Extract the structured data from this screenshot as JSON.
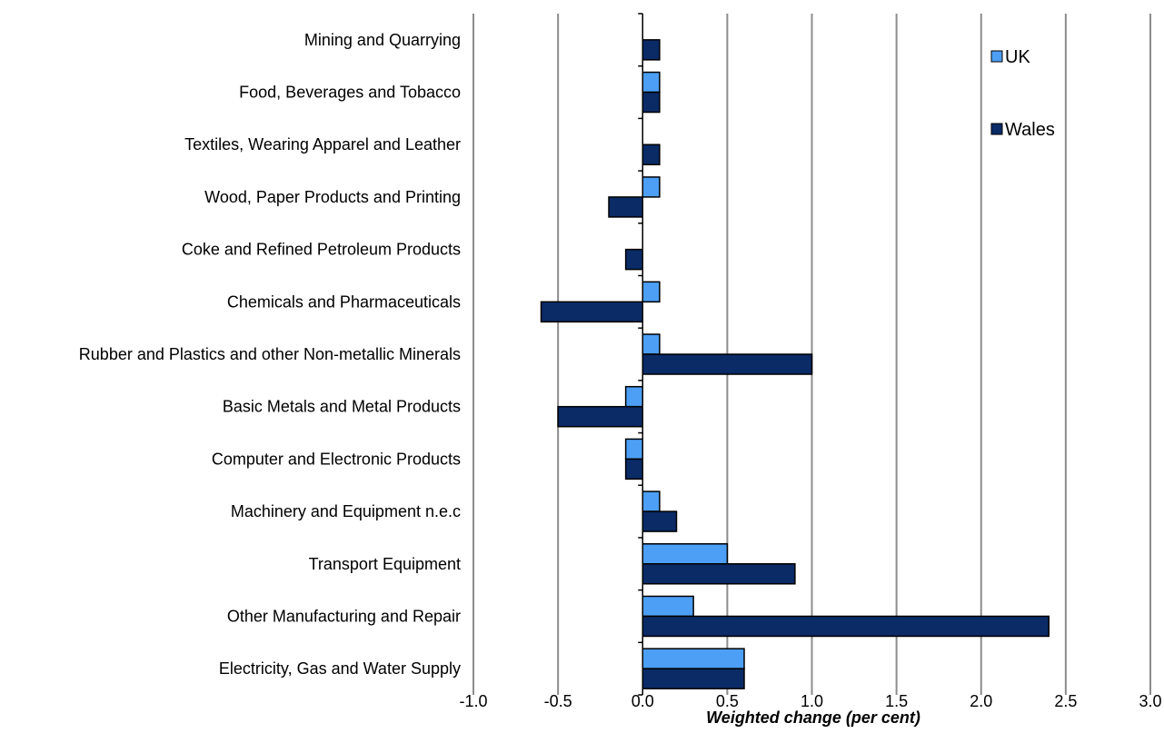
{
  "chart_data": {
    "type": "bar",
    "orientation": "horizontal",
    "categories": [
      "Mining and Quarrying",
      "Food, Beverages and Tobacco",
      "Textiles, Wearing Apparel and Leather",
      "Wood, Paper Products and Printing",
      "Coke and Refined Petroleum Products",
      "Chemicals and Pharmaceuticals",
      "Rubber and Plastics and other Non-metallic Minerals",
      "Basic Metals and Metal Products",
      "Computer and Electronic Products",
      "Machinery and Equipment n.e.c",
      "Transport Equipment",
      "Other Manufacturing and Repair",
      "Electricity, Gas and Water Supply"
    ],
    "series": [
      {
        "name": "UK",
        "color": "#4d9ff5",
        "values": [
          0.0,
          0.1,
          0.0,
          0.1,
          0.0,
          0.1,
          0.1,
          -0.1,
          -0.1,
          0.1,
          0.5,
          0.3,
          0.6
        ]
      },
      {
        "name": "Wales",
        "color": "#0a2b66",
        "values": [
          0.1,
          0.1,
          0.1,
          -0.2,
          -0.1,
          -0.6,
          1.0,
          -0.5,
          -0.1,
          0.2,
          0.9,
          2.4,
          0.6
        ]
      }
    ],
    "xlabel": "Weighted change (per cent)",
    "xlim": [
      -1.0,
      3.0
    ],
    "xticks": [
      "-1.0",
      "-0.5",
      "0.0",
      "0.5",
      "1.0",
      "1.5",
      "2.0",
      "2.5",
      "3.0"
    ],
    "grid": "vertical",
    "legend_position": "top-right"
  }
}
